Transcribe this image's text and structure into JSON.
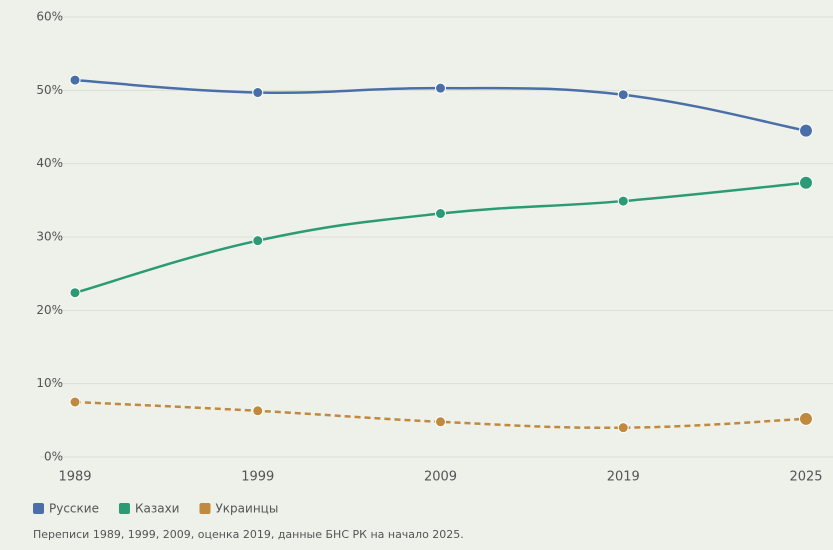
{
  "chart_data": {
    "type": "line",
    "categories": [
      "1989",
      "1999",
      "2009",
      "2019",
      "2025"
    ],
    "series": [
      {
        "name": "Русские",
        "color": "#4a6fa8",
        "values": [
          51.4,
          49.7,
          50.3,
          49.4,
          44.5
        ]
      },
      {
        "name": "Казахи",
        "color": "#2a9b74",
        "values": [
          22.4,
          29.5,
          33.2,
          34.9,
          37.4
        ]
      },
      {
        "name": "Украинцы",
        "color": "#c0893d",
        "values": [
          7.5,
          6.3,
          4.8,
          4.0,
          5.2
        ],
        "dashed": true
      }
    ],
    "ylim": [
      0,
      60
    ],
    "yticks": [
      {
        "value": 0,
        "label": "0%"
      },
      {
        "value": 10,
        "label": "10%"
      },
      {
        "value": 20,
        "label": "20%"
      },
      {
        "value": 30,
        "label": "30%"
      },
      {
        "value": 40,
        "label": "40%"
      },
      {
        "value": 50,
        "label": "50%"
      },
      {
        "value": 60,
        "label": "60%"
      }
    ],
    "grid": true,
    "legend": "bottom-left",
    "source": "Переписи 1989, 1999, 2009, оценка 2019, данные БНС РК на начало 2025."
  }
}
